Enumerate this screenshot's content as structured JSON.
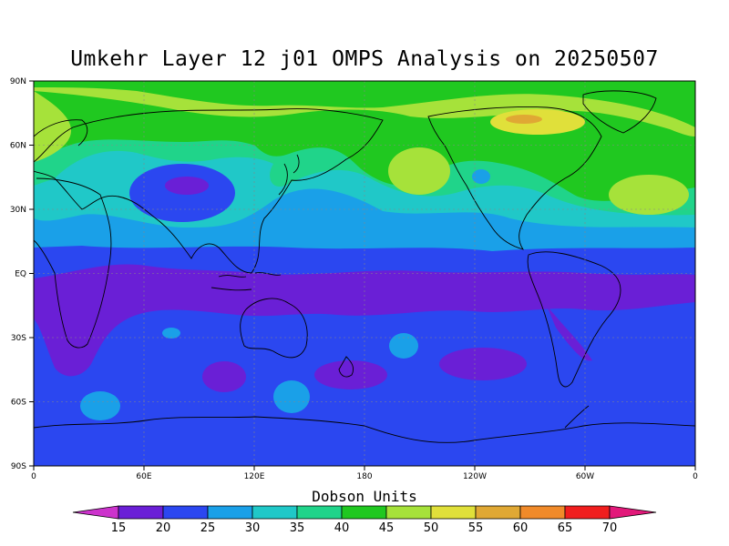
{
  "title": "Umkehr Layer 12 j01 OMPS Analysis on 20250507",
  "colorbar": {
    "title": "Dobson Units",
    "levels": [
      "15",
      "20",
      "25",
      "30",
      "35",
      "40",
      "45",
      "50",
      "55",
      "60",
      "65",
      "70"
    ],
    "colors": [
      "#cc33cc",
      "#6a1fd6",
      "#2b47f0",
      "#1aa0e8",
      "#20c8c8",
      "#20d48a",
      "#20c820",
      "#a6e23a",
      "#e0e03a",
      "#e0a834",
      "#f08a2a",
      "#f01e1e",
      "#e2197a"
    ]
  },
  "axes": {
    "lon_ticks": [
      "0",
      "60E",
      "120E",
      "180",
      "120W",
      "60W",
      "0"
    ],
    "lat_ticks": [
      "90N",
      "60N",
      "30N",
      "EQ",
      "30S",
      "60S",
      "90S"
    ]
  },
  "chart_data": {
    "type": "heatmap",
    "title": "Umkehr Layer 12 j01 OMPS Analysis on 20250507",
    "xlabel": "",
    "ylabel": "",
    "xlim": [
      0,
      360
    ],
    "ylim": [
      -90,
      90
    ],
    "units": "Dobson Units",
    "contour_levels": [
      15,
      20,
      25,
      30,
      35,
      40,
      45,
      50,
      55,
      60,
      65,
      70
    ],
    "features": {
      "tropical_minimum": "15-20",
      "southern_hemisphere_background": "20-25",
      "northern_midlatitudes": "35-45",
      "northern_high_latitude_maximum": "50-60"
    }
  }
}
